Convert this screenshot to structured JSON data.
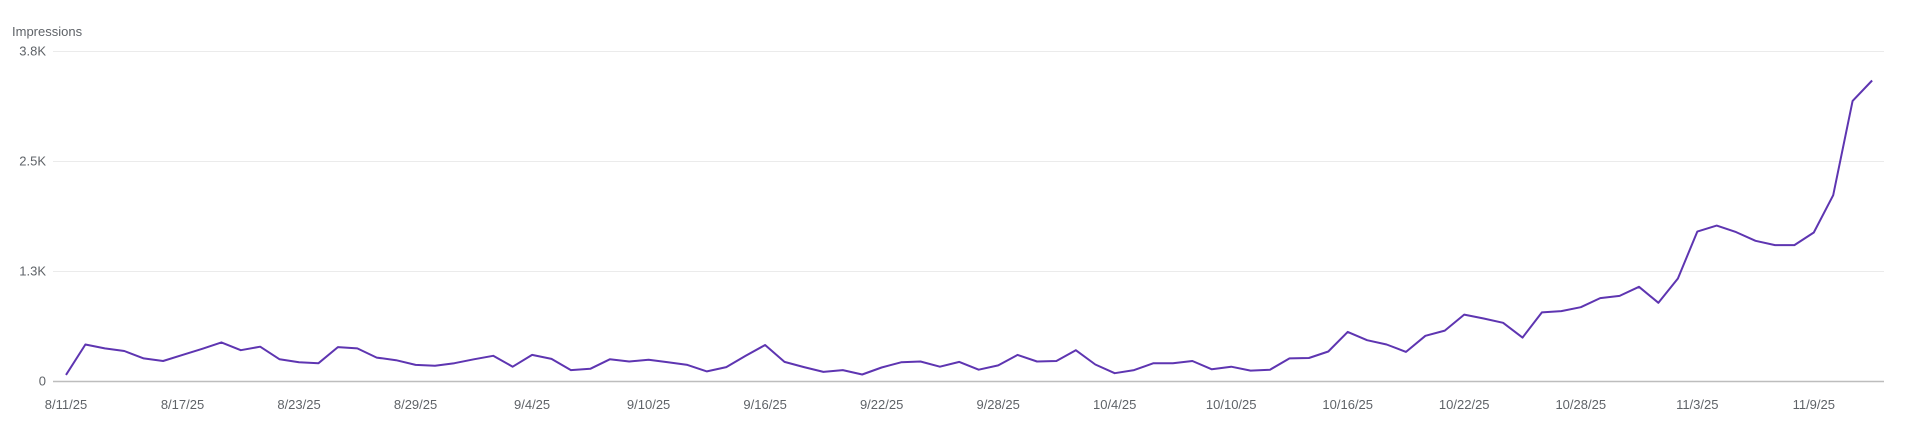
{
  "chart_data": {
    "type": "line",
    "title": "",
    "xlabel": "",
    "ylabel": "Impressions",
    "ylim": [
      0,
      3800
    ],
    "grid": true,
    "legend": null,
    "y_ticks": [
      {
        "value": 0,
        "label": "0"
      },
      {
        "value": 1267,
        "label": "1.3K"
      },
      {
        "value": 2533,
        "label": "2.5K"
      },
      {
        "value": 3800,
        "label": "3.8K"
      }
    ],
    "x_tick_labels": [
      "8/11/25",
      "8/17/25",
      "8/23/25",
      "8/29/25",
      "9/4/25",
      "9/10/25",
      "9/16/25",
      "9/22/25",
      "9/28/25",
      "10/4/25",
      "10/10/25",
      "10/16/25",
      "10/22/25",
      "10/28/25",
      "11/3/25",
      "11/9/25"
    ],
    "x_tick_every": 6,
    "x_start": "8/11/25",
    "x_end": "11/12/25",
    "series": [
      {
        "name": "Impressions",
        "color": "#5e35b1",
        "values": [
          70,
          420,
          375,
          345,
          260,
          230,
          300,
          370,
          445,
          355,
          395,
          250,
          215,
          205,
          390,
          375,
          270,
          240,
          185,
          175,
          205,
          250,
          290,
          165,
          300,
          255,
          125,
          140,
          250,
          225,
          245,
          215,
          185,
          110,
          160,
          290,
          415,
          220,
          160,
          105,
          125,
          75,
          155,
          215,
          225,
          165,
          220,
          130,
          180,
          300,
          225,
          230,
          355,
          190,
          90,
          125,
          205,
          205,
          230,
          135,
          165,
          120,
          130,
          260,
          265,
          340,
          565,
          470,
          420,
          335,
          520,
          580,
          765,
          720,
          670,
          500,
          790,
          805,
          850,
          955,
          980,
          1085,
          900,
          1180,
          1720,
          1790,
          1715,
          1615,
          1565,
          1565,
          1710,
          2140,
          3225,
          3460
        ]
      }
    ]
  },
  "axis": {
    "title": "Impressions",
    "grid_color": "#ebebeb",
    "baseline_color": "#bdbdbd",
    "label_color": "#5f6368"
  }
}
